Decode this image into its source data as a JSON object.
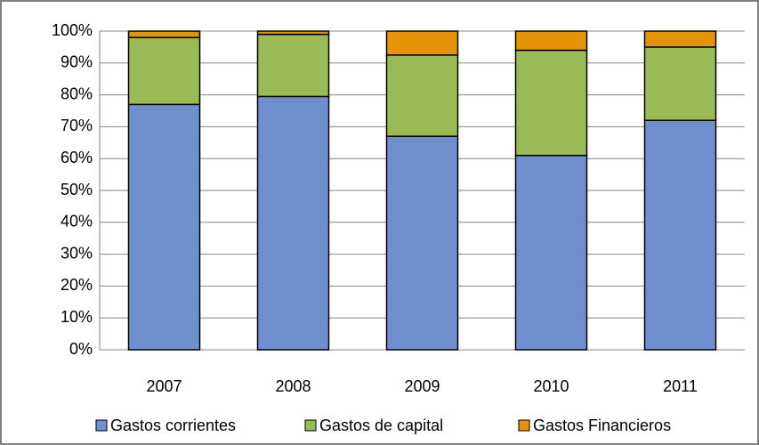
{
  "chart_data": {
    "type": "stacked_bar",
    "categories": [
      "2007",
      "2008",
      "2009",
      "2010",
      "2011"
    ],
    "series": [
      {
        "name": "Gastos corrientes",
        "color": "#6f8fcf",
        "values": [
          77,
          79.5,
          67,
          61,
          72
        ]
      },
      {
        "name": "Gastos de capital",
        "color": "#9bbb59",
        "values": [
          21,
          19.5,
          25.5,
          33,
          23
        ]
      },
      {
        "name": "Gastos Financieros",
        "color": "#e6930a",
        "values": [
          2,
          1,
          7.5,
          6,
          5
        ]
      }
    ],
    "ylim": [
      0,
      100
    ],
    "yticks": [
      {
        "value": 0,
        "label": "0%"
      },
      {
        "value": 10,
        "label": "10%"
      },
      {
        "value": 20,
        "label": "20%"
      },
      {
        "value": 30,
        "label": "30%"
      },
      {
        "value": 40,
        "label": "40%"
      },
      {
        "value": 50,
        "label": "50%"
      },
      {
        "value": 60,
        "label": "60%"
      },
      {
        "value": 70,
        "label": "70%"
      },
      {
        "value": 80,
        "label": "80%"
      },
      {
        "value": 90,
        "label": "90%"
      },
      {
        "value": 100,
        "label": "100%"
      }
    ],
    "grid": true
  }
}
